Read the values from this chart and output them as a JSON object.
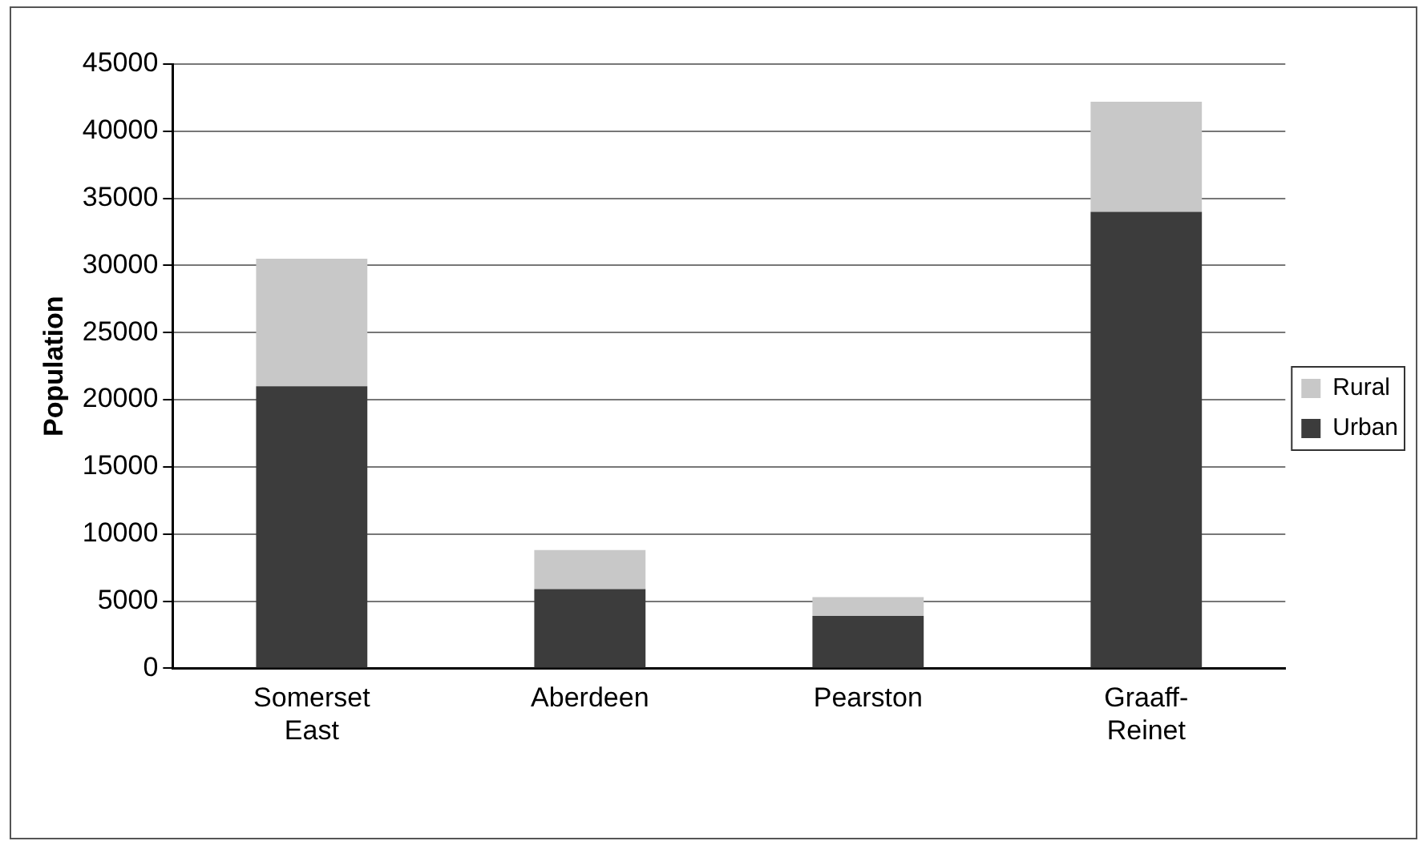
{
  "chart_data": {
    "type": "bar",
    "stacked": true,
    "ylabel": "Population",
    "categories": [
      "Somerset East",
      "Aberdeen",
      "Pearston",
      "Graaff-Reinet"
    ],
    "series": [
      {
        "name": "Urban",
        "color": "#3c3c3c",
        "values": [
          21000,
          5900,
          3900,
          34000
        ]
      },
      {
        "name": "Rural",
        "color": "#c8c8c8",
        "values": [
          9500,
          2900,
          1400,
          8200
        ]
      }
    ],
    "ylim": [
      0,
      45000
    ],
    "yticks": [
      0,
      5000,
      10000,
      15000,
      20000,
      25000,
      30000,
      35000,
      40000,
      45000
    ],
    "grid": "y",
    "legend": "right"
  }
}
